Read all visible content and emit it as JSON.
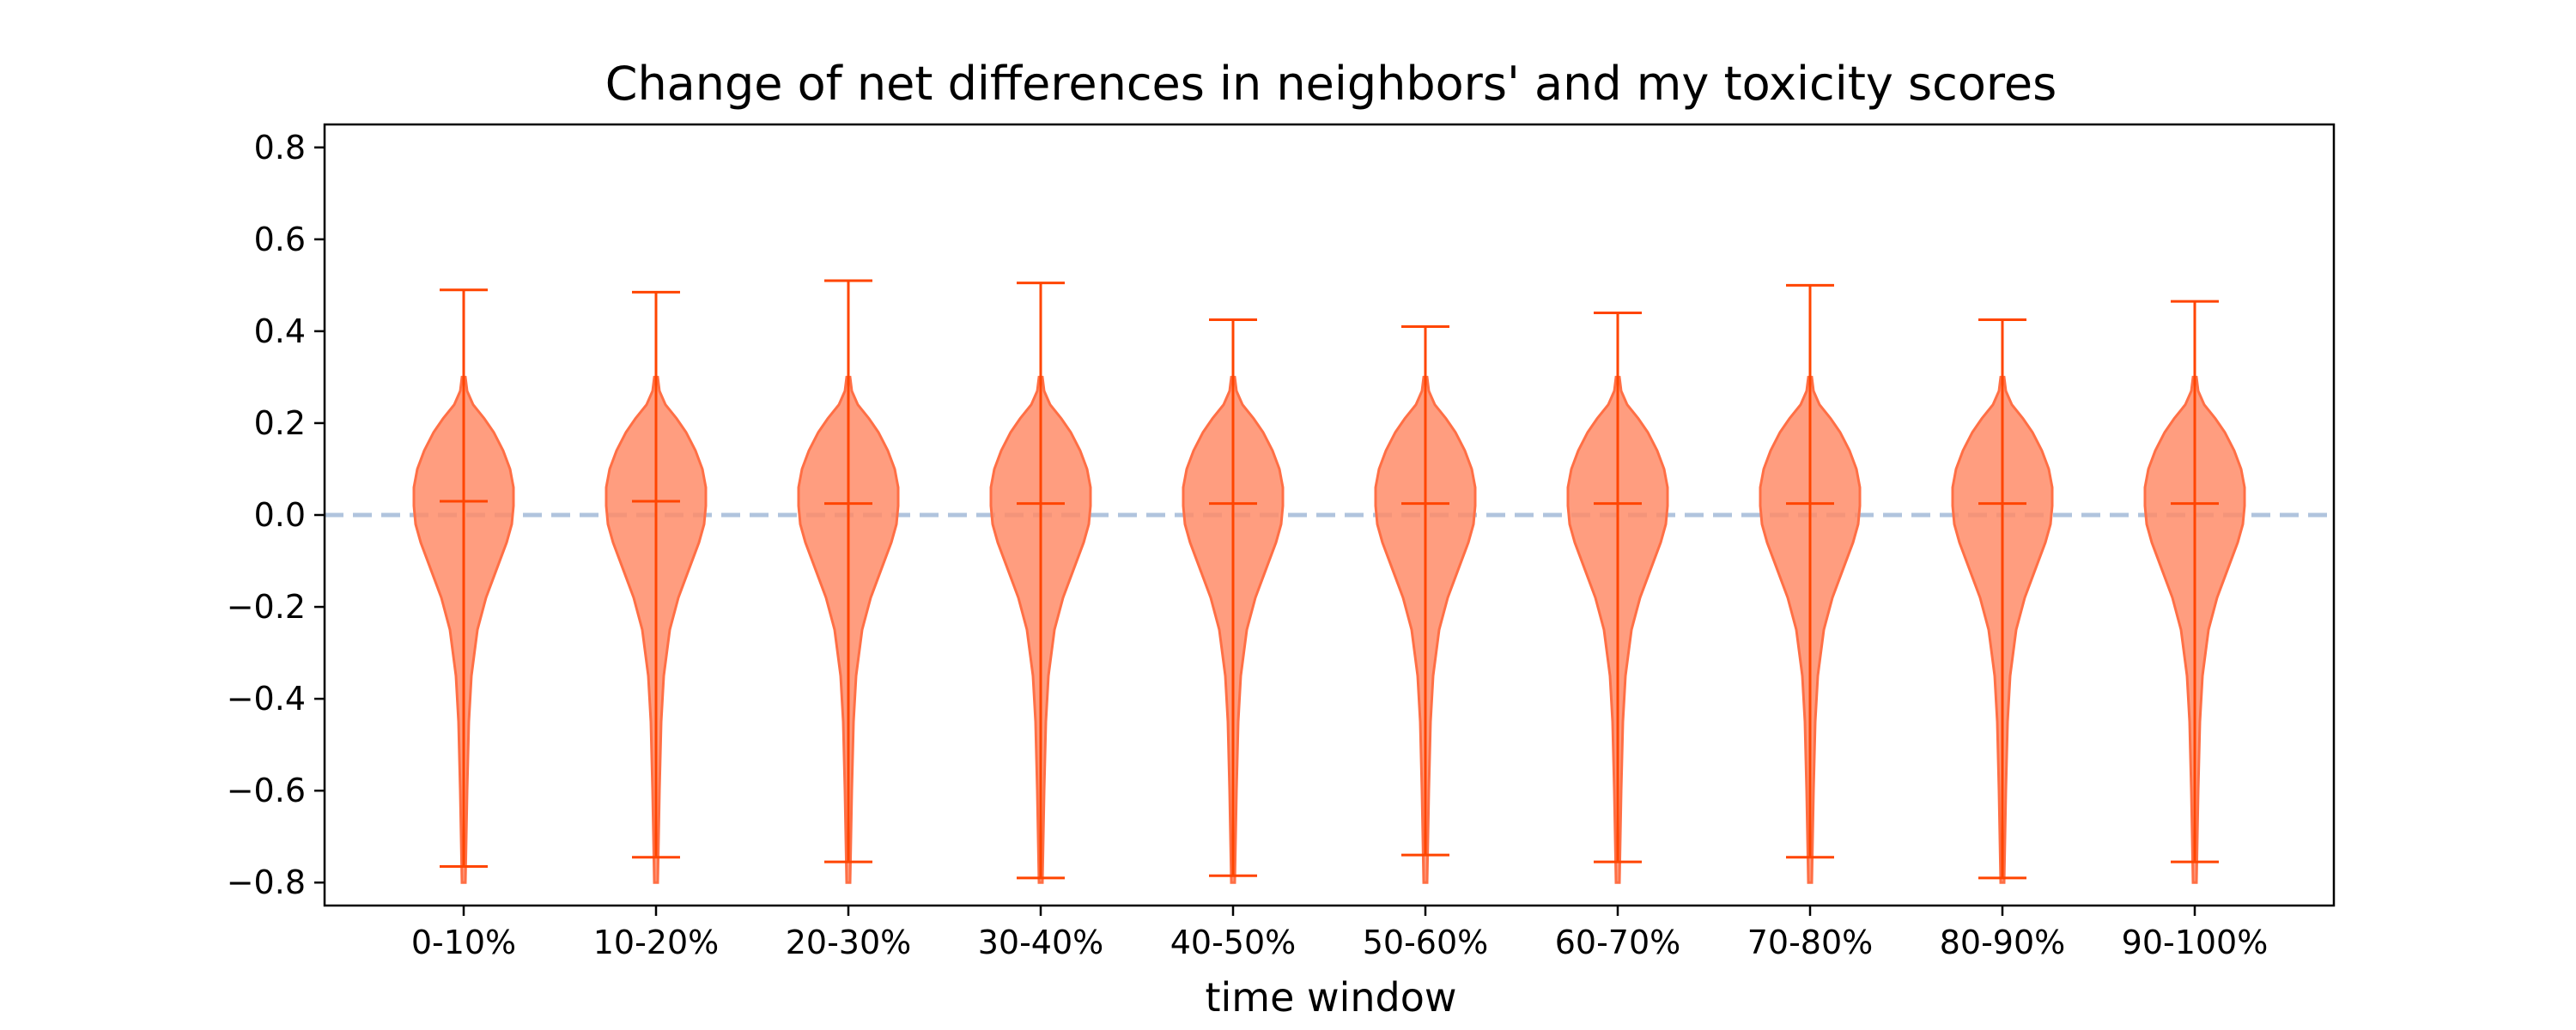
{
  "chart_data": {
    "type": "violin",
    "title": "Change of net differences in neighbors' and my toxicity scores",
    "xlabel": "time window",
    "ylabel": "",
    "ylim": [
      -0.85,
      0.85
    ],
    "yticks": [
      -0.8,
      -0.6,
      -0.4,
      -0.2,
      0.0,
      0.2,
      0.4,
      0.6,
      0.8
    ],
    "ytick_labels": [
      "−0.8",
      "−0.6",
      "−0.4",
      "−0.2",
      "0.0",
      "0.2",
      "0.4",
      "0.6",
      "0.8"
    ],
    "categories": [
      "0-10%",
      "10-20%",
      "20-30%",
      "30-40%",
      "40-50%",
      "50-60%",
      "60-70%",
      "70-80%",
      "80-90%",
      "90-100%"
    ],
    "min": [
      -0.765,
      -0.745,
      -0.755,
      -0.79,
      -0.785,
      -0.74,
      -0.755,
      -0.745,
      -0.79,
      -0.755
    ],
    "max": [
      0.49,
      0.485,
      0.51,
      0.505,
      0.425,
      0.41,
      0.44,
      0.5,
      0.425,
      0.465
    ],
    "mean": [
      0.03,
      0.03,
      0.025,
      0.025,
      0.025,
      0.025,
      0.025,
      0.025,
      0.025,
      0.025
    ],
    "reference_line": {
      "y": 0.0,
      "style": "dashed",
      "color": "#b0c4de"
    },
    "colors": {
      "body": "#ff8c69",
      "body_stroke": "#ff6f45",
      "lines": "#ff4500"
    },
    "grid": false,
    "legend": "none"
  }
}
